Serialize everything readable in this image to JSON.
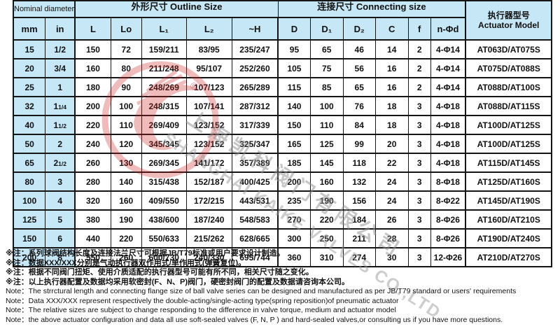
{
  "table": {
    "header_groups": [
      {
        "id": "nominal",
        "label": "Nominal diameter",
        "colspan": 2
      },
      {
        "id": "outline",
        "label": "外形尺寸 Outline Size",
        "colspan": 5
      },
      {
        "id": "connecting",
        "label": "连接尺寸 Connecting size",
        "colspan": 6
      },
      {
        "id": "actuator",
        "label_cn": "执行器型号",
        "label_en": "Actuator Model",
        "rowspan": 2
      }
    ],
    "columns": [
      {
        "key": "mm",
        "label": "mm",
        "width": 42,
        "blue": true
      },
      {
        "key": "inch",
        "label": "in",
        "width": 39,
        "blue": true
      },
      {
        "key": "L",
        "label": "L",
        "width": 51,
        "thick": true
      },
      {
        "key": "Lo",
        "label": "Lo",
        "width": 44
      },
      {
        "key": "L1",
        "label": "L₁",
        "width": 64
      },
      {
        "key": "L2",
        "label": "L₂",
        "width": 65
      },
      {
        "key": "H",
        "label": "~H",
        "width": 66
      },
      {
        "key": "D",
        "label": "D",
        "width": 46,
        "thick": true
      },
      {
        "key": "D1",
        "label": "D₁",
        "width": 47
      },
      {
        "key": "D2",
        "label": "D₂",
        "width": 46
      },
      {
        "key": "C",
        "label": "C",
        "width": 47
      },
      {
        "key": "f",
        "label": "f",
        "width": 32
      },
      {
        "key": "nd",
        "label": "n-Φd",
        "width": 50
      },
      {
        "key": "model",
        "label": "",
        "width": 123,
        "thick": true
      }
    ],
    "rows": [
      {
        "mm": "15",
        "inch": "1/2",
        "L": "150",
        "Lo": "72",
        "L1": "159/211",
        "L2": "83/95",
        "H": "235/247",
        "D": "95",
        "D1": "65",
        "D2": "46",
        "C": "14",
        "f": "2",
        "nd": "4-Φ14",
        "model": "AT063D/AT075S"
      },
      {
        "mm": "20",
        "inch": "3/4",
        "L": "160",
        "Lo": "80",
        "L1": "211/248",
        "L2": "95/107",
        "H": "252/260",
        "D": "105",
        "D1": "75",
        "D2": "56",
        "C": "16",
        "f": "2",
        "nd": "4-Φ14",
        "model": "AT075D/AT088S"
      },
      {
        "mm": "25",
        "inch": "1",
        "L": "180",
        "Lo": "90",
        "L1": "248/269",
        "L2": "107/123",
        "H": "265/289",
        "D": "115",
        "D1": "85",
        "D2": "65",
        "C": "16",
        "f": "2",
        "nd": "4-Φ14",
        "model": "AT088D/AT100S"
      },
      {
        "mm": "32",
        "inch": "1 1/4",
        "L": "200",
        "Lo": "100",
        "L1": "248/315",
        "L2": "107/141",
        "H": "287/312",
        "D": "140",
        "D1": "100",
        "D2": "76",
        "C": "18",
        "f": "3",
        "nd": "4-Φ18",
        "model": "AT088D/AT115S"
      },
      {
        "mm": "40",
        "inch": "1 1/2",
        "L": "220",
        "Lo": "110",
        "L1": "269/409",
        "L2": "123/152",
        "H": "317/339",
        "D": "150",
        "D1": "110",
        "D2": "84",
        "C": "18",
        "f": "3",
        "nd": "4-Φ18",
        "model": "AT100D/AT125S"
      },
      {
        "mm": "50",
        "inch": "2",
        "L": "240",
        "Lo": "120",
        "L1": "345/345",
        "L2": "123/152",
        "H": "325/347",
        "D": "165",
        "D1": "125",
        "D2": "99",
        "C": "20",
        "f": "3",
        "nd": "4-Φ18",
        "model": "AT100D/AT125S"
      },
      {
        "mm": "65",
        "inch": "2 1/2",
        "L": "260",
        "Lo": "130",
        "L1": "269/345",
        "L2": "141/172",
        "H": "357/389",
        "D": "185",
        "D1": "145",
        "D2": "118",
        "C": "22",
        "f": "3",
        "nd": "4-Φ18",
        "model": "AT115D/AT145S"
      },
      {
        "mm": "80",
        "inch": "3",
        "L": "280",
        "Lo": "140",
        "L1": "315/438",
        "L2": "152/187",
        "H": "400/425",
        "D": "200",
        "D1": "160",
        "D2": "132",
        "C": "24",
        "f": "3",
        "nd": "8-Φ18",
        "model": "AT125D/AT160S"
      },
      {
        "mm": "100",
        "inch": "4",
        "L": "320",
        "Lo": "160",
        "L1": "409/550",
        "L2": "172/215",
        "H": "443/531",
        "D": "235",
        "D1": "190",
        "D2": "156",
        "C": "24",
        "f": "3",
        "nd": "8-Φ22",
        "model": "AT145D/AT190S"
      },
      {
        "mm": "125",
        "inch": "5",
        "L": "380",
        "Lo": "190",
        "L1": "438/600",
        "L2": "187/240",
        "H": "548/583",
        "D": "270",
        "D1": "220",
        "D2": "184",
        "C": "26",
        "f": "3",
        "nd": "8-Φ26",
        "model": "AT160D/AT210S"
      },
      {
        "mm": "150",
        "inch": "6",
        "L": "440",
        "Lo": "220",
        "L1": "550/633",
        "L2": "215/262",
        "H": "628/665",
        "D": "300",
        "D1": "250",
        "D2": "211",
        "C": "28",
        "f": "3",
        "nd": "8-Φ26",
        "model": "AT190D/AT240S"
      },
      {
        "mm": "200",
        "inch": "8",
        "L": "550",
        "Lo": "260",
        "L1": "600/730",
        "L2": "240/330",
        "H": "695/744",
        "D": "360",
        "D1": "310",
        "D2": "274",
        "C": "30",
        "f": "3",
        "nd": "12-Φ26",
        "model": "AT210D/AT270S"
      }
    ]
  },
  "notes_cn": [
    "※注：系列球阀结构长度及连接法兰尺寸可根据JB/T79标准或用户要求设计制造。",
    "※注：数据XXX/XXX分别是气动执行器双作用式/单作用式(弹簧复位)。",
    "※注：根据不同阀门扭矩、使用介质适配的执行器型号可能有所不同，相关尺寸随之变化。",
    "※注：以上执行器配置及数据均采用软密封(F、N、P)阀门，硬密封阀门的配置及数据请咨询本公司。"
  ],
  "notes_en": [
    "Note：The strrctural length and connecting flange size of ball valve series can be designed and manufactured as per JB/T79 standard or users' requirements",
    "Note：Data XXX/XXX represent respectively the double-acting/single-acting type(spring reposition)of pneumatic actuator",
    "Note：The relative sizes are subject to change responding to the difference in valve torque, medium and actuator model",
    "Note：the above actuator  configuration and data  all use soft-sealed valves (F, N, P ) and  hard-sealed valves,or consulting us if you have more questions."
  ],
  "watermark": {
    "text_cn": "上海凯科阀门有限公司",
    "text_en": "SHANGHAI KAIKE VALVES CO.,LTD",
    "registered": "®",
    "logo_color": "#cc2222"
  },
  "colors": {
    "header_bg": "#c6e7f5",
    "border": "#151515"
  }
}
